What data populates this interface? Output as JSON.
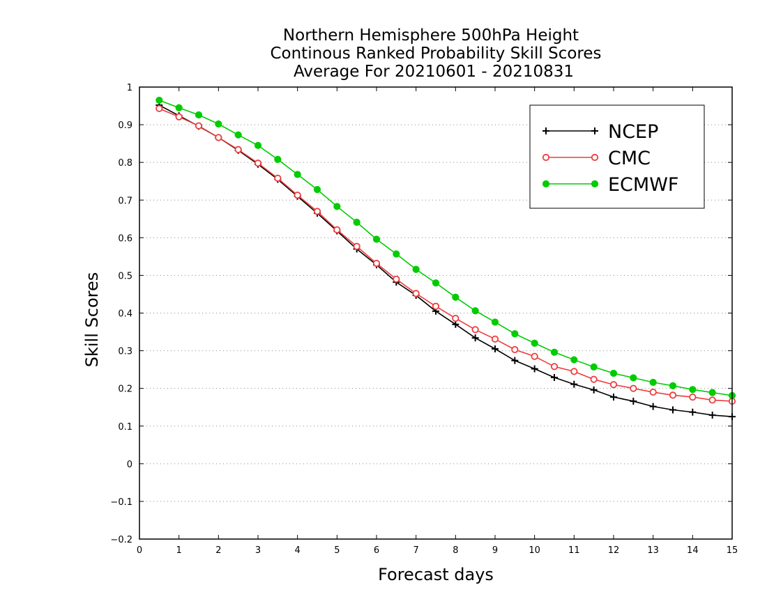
{
  "chart_data": {
    "type": "line",
    "title": [
      "Northern Hemisphere 500hPa Height",
      "Continous Ranked Probability Skill Scores",
      "Average For 20210601 - 20210831"
    ],
    "xlabel": "Forecast days",
    "ylabel": "Skill Scores",
    "xlim": [
      0,
      15
    ],
    "ylim": [
      -0.2,
      1
    ],
    "x_ticks": [
      0,
      1,
      2,
      3,
      4,
      5,
      6,
      7,
      8,
      9,
      10,
      11,
      12,
      13,
      14,
      15
    ],
    "y_ticks": [
      -0.2,
      -0.1,
      0,
      0.1,
      0.2,
      0.3,
      0.4,
      0.5,
      0.6,
      0.7,
      0.8,
      0.9,
      1
    ],
    "x_tick_labels": [
      "0",
      "1",
      "2",
      "3",
      "4",
      "5",
      "6",
      "7",
      "8",
      "9",
      "10",
      "11",
      "12",
      "13",
      "14",
      "15"
    ],
    "y_tick_labels": [
      "−0.2",
      "−0.1",
      "0",
      "0.1",
      "0.2",
      "0.3",
      "0.4",
      "0.5",
      "0.6",
      "0.7",
      "0.8",
      "0.9",
      "1"
    ],
    "grid": "horizontal-dotted",
    "legend_position": "top-right",
    "x": [
      0.5,
      1,
      1.5,
      2,
      2.5,
      3,
      3.5,
      4,
      4.5,
      5,
      5.5,
      6,
      6.5,
      7,
      7.5,
      8,
      8.5,
      9,
      9.5,
      10,
      10.5,
      11,
      11.5,
      12,
      12.5,
      13,
      13.5,
      14,
      14.5,
      15
    ],
    "series": [
      {
        "name": "NCEP",
        "color": "#000000",
        "marker": "plus",
        "values": [
          0.952,
          0.924,
          0.896,
          0.866,
          0.832,
          0.795,
          0.755,
          0.71,
          0.665,
          0.618,
          0.57,
          0.528,
          0.482,
          0.447,
          0.405,
          0.37,
          0.334,
          0.305,
          0.274,
          0.252,
          0.229,
          0.211,
          0.196,
          0.177,
          0.166,
          0.152,
          0.143,
          0.137,
          0.129,
          0.125
        ]
      },
      {
        "name": "CMC",
        "color": "#ee3b3b",
        "marker": "open-circle",
        "values": [
          0.943,
          0.921,
          0.897,
          0.866,
          0.834,
          0.798,
          0.758,
          0.713,
          0.67,
          0.621,
          0.577,
          0.532,
          0.49,
          0.452,
          0.418,
          0.386,
          0.356,
          0.331,
          0.303,
          0.285,
          0.258,
          0.245,
          0.224,
          0.21,
          0.2,
          0.19,
          0.182,
          0.177,
          0.169,
          0.166
        ]
      },
      {
        "name": "ECMWF",
        "color": "#00cc00",
        "marker": "filled-circle",
        "values": [
          0.965,
          0.945,
          0.926,
          0.902,
          0.873,
          0.845,
          0.808,
          0.768,
          0.728,
          0.683,
          0.641,
          0.596,
          0.557,
          0.516,
          0.48,
          0.442,
          0.406,
          0.376,
          0.345,
          0.32,
          0.296,
          0.276,
          0.257,
          0.24,
          0.228,
          0.216,
          0.207,
          0.197,
          0.189,
          0.181
        ]
      }
    ]
  }
}
